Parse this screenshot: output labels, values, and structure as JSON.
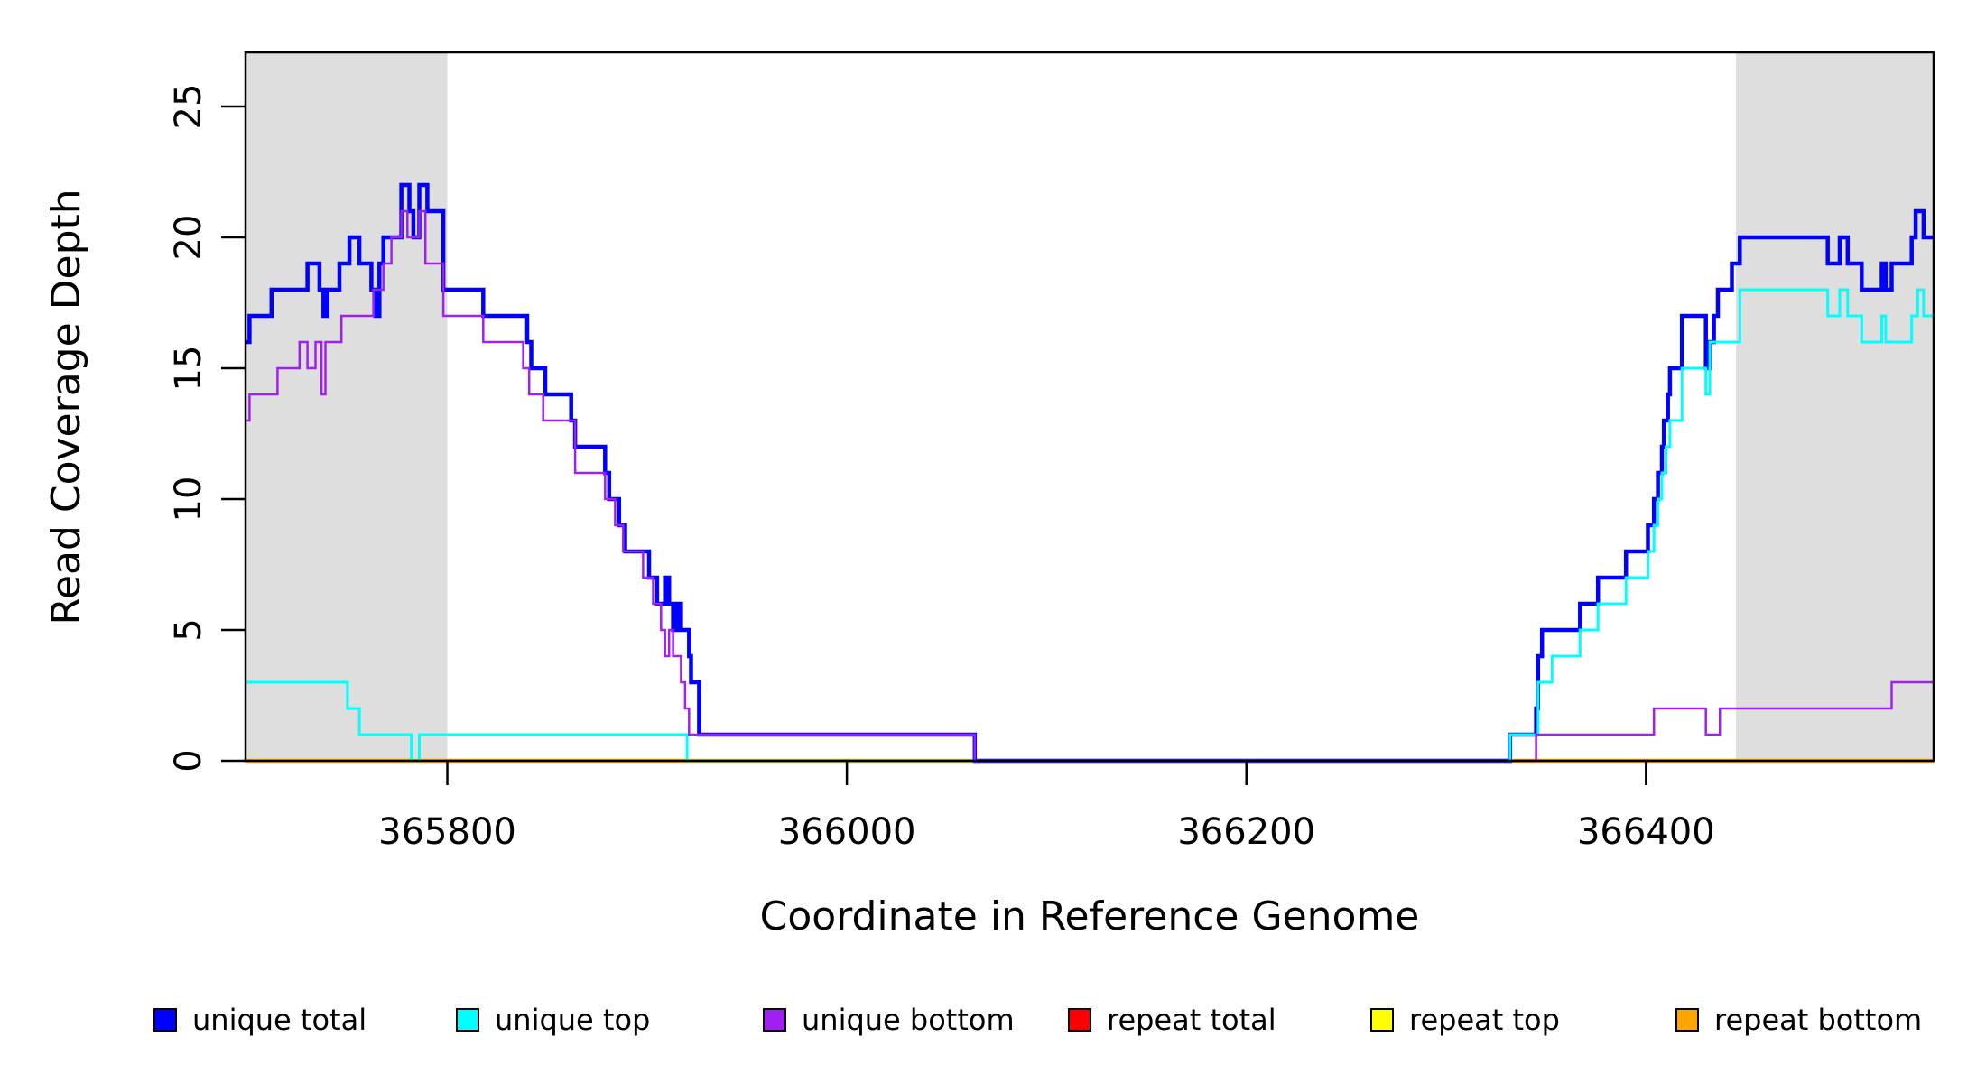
{
  "chart_data": {
    "type": "line",
    "subtype": "step-after-coverage-plot",
    "title": "",
    "xlabel": "Coordinate in Reference Genome",
    "ylabel": "Read Coverage Depth",
    "xlim": [
      365699,
      366544
    ],
    "ylim": [
      0,
      27
    ],
    "grid": false,
    "x_ticks": [
      {
        "value": 365800,
        "label": "365800"
      },
      {
        "value": 366000,
        "label": "366000"
      },
      {
        "value": 366200,
        "label": "366200"
      },
      {
        "value": 366400,
        "label": "366400"
      }
    ],
    "y_ticks": [
      {
        "value": 0,
        "label": "0"
      },
      {
        "value": 5,
        "label": "5"
      },
      {
        "value": 10,
        "label": "10"
      },
      {
        "value": 15,
        "label": "15"
      },
      {
        "value": 20,
        "label": "20"
      },
      {
        "value": 25,
        "label": "25"
      }
    ],
    "shaded_regions": [
      {
        "name": "left-gray-band",
        "from": 365699,
        "to": 365800,
        "color": "#DEDEDE"
      },
      {
        "name": "right-gray-band",
        "from": 366445,
        "to": 366544,
        "color": "#DEDEDE"
      }
    ],
    "legend_position": "bottom",
    "series": [
      {
        "name": "repeat total",
        "color": "#FF0000",
        "width": 4,
        "points": [
          [
            365699,
            0
          ]
        ]
      },
      {
        "name": "repeat top",
        "color": "#FFFF00",
        "width": 3,
        "points": [
          [
            365699,
            0
          ]
        ]
      },
      {
        "name": "repeat bottom",
        "color": "#FFA500",
        "width": 4.5,
        "points": [
          [
            365699,
            0
          ]
        ]
      },
      {
        "name": "unique total",
        "color": "#0000FF",
        "width": 4.5,
        "points": [
          [
            365699,
            16
          ],
          [
            365701,
            17
          ],
          [
            365712,
            18
          ],
          [
            365730,
            19
          ],
          [
            365736,
            18
          ],
          [
            365738,
            17
          ],
          [
            365740,
            18
          ],
          [
            365746,
            19
          ],
          [
            365751,
            20
          ],
          [
            365756,
            19
          ],
          [
            365762,
            18
          ],
          [
            365764,
            17
          ],
          [
            365766,
            19
          ],
          [
            365768,
            20
          ],
          [
            365777,
            22
          ],
          [
            365781,
            21
          ],
          [
            365783,
            20
          ],
          [
            365786,
            22
          ],
          [
            365790,
            21
          ],
          [
            365798,
            18
          ],
          [
            365818,
            17
          ],
          [
            365840,
            16
          ],
          [
            365842,
            15
          ],
          [
            365849,
            14
          ],
          [
            365862,
            13
          ],
          [
            365864,
            12
          ],
          [
            365879,
            11
          ],
          [
            365881,
            10
          ],
          [
            365886,
            9
          ],
          [
            365889,
            8
          ],
          [
            365901,
            7
          ],
          [
            365905,
            6
          ],
          [
            365909,
            7
          ],
          [
            365911,
            6
          ],
          [
            365913,
            5
          ],
          [
            365915,
            6
          ],
          [
            365917,
            5
          ],
          [
            365921,
            4
          ],
          [
            365922,
            3
          ],
          [
            365926,
            1
          ],
          [
            366064,
            0
          ],
          [
            366332,
            1
          ],
          [
            366345,
            2
          ],
          [
            366346,
            4
          ],
          [
            366348,
            5
          ],
          [
            366367,
            6
          ],
          [
            366376,
            7
          ],
          [
            366390,
            8
          ],
          [
            366401,
            9
          ],
          [
            366404,
            10
          ],
          [
            366406,
            11
          ],
          [
            366408,
            12
          ],
          [
            366409,
            13
          ],
          [
            366411,
            14
          ],
          [
            366412,
            15
          ],
          [
            366418,
            17
          ],
          [
            366430,
            15
          ],
          [
            366432,
            16
          ],
          [
            366434,
            17
          ],
          [
            366436,
            18
          ],
          [
            366443,
            19
          ],
          [
            366447,
            20
          ],
          [
            366491,
            19
          ],
          [
            366497,
            20
          ],
          [
            366501,
            19
          ],
          [
            366508,
            18
          ],
          [
            366518,
            19
          ],
          [
            366520,
            18
          ],
          [
            366523,
            19
          ],
          [
            366533,
            20
          ],
          [
            366535,
            21
          ],
          [
            366539,
            20
          ]
        ]
      },
      {
        "name": "unique top",
        "color": "#00FFFF",
        "width": 3,
        "points": [
          [
            365699,
            3
          ],
          [
            365750,
            2
          ],
          [
            365756,
            1
          ],
          [
            365782,
            0
          ],
          [
            365786,
            1
          ],
          [
            365920,
            0
          ],
          [
            366332,
            1
          ],
          [
            366346,
            3
          ],
          [
            366353,
            4
          ],
          [
            366367,
            5
          ],
          [
            366376,
            6
          ],
          [
            366390,
            7
          ],
          [
            366401,
            8
          ],
          [
            366404,
            9
          ],
          [
            366406,
            10
          ],
          [
            366408,
            11
          ],
          [
            366410,
            12
          ],
          [
            366412,
            13
          ],
          [
            366418,
            15
          ],
          [
            366430,
            14
          ],
          [
            366432,
            16
          ],
          [
            366447,
            18
          ],
          [
            366491,
            17
          ],
          [
            366497,
            18
          ],
          [
            366501,
            17
          ],
          [
            366508,
            16
          ],
          [
            366518,
            17
          ],
          [
            366520,
            16
          ],
          [
            366533,
            17
          ],
          [
            366536,
            18
          ],
          [
            366539,
            17
          ]
        ]
      },
      {
        "name": "unique bottom",
        "color": "#A020F0",
        "width": 2.5,
        "points": [
          [
            365699,
            13
          ],
          [
            365701,
            14
          ],
          [
            365715,
            15
          ],
          [
            365726,
            16
          ],
          [
            365730,
            15
          ],
          [
            365734,
            16
          ],
          [
            365737,
            14
          ],
          [
            365739,
            16
          ],
          [
            365747,
            17
          ],
          [
            365763,
            18
          ],
          [
            365768,
            19
          ],
          [
            365772,
            20
          ],
          [
            365777,
            21
          ],
          [
            365780,
            20
          ],
          [
            365786,
            21
          ],
          [
            365789,
            19
          ],
          [
            365798,
            17
          ],
          [
            365818,
            16
          ],
          [
            365838,
            15
          ],
          [
            365841,
            14
          ],
          [
            365848,
            13
          ],
          [
            365864,
            11
          ],
          [
            365879,
            10
          ],
          [
            365884,
            9
          ],
          [
            365888,
            8
          ],
          [
            365898,
            7
          ],
          [
            365903,
            6
          ],
          [
            365907,
            5
          ],
          [
            365909,
            4
          ],
          [
            365911,
            5
          ],
          [
            365913,
            4
          ],
          [
            365917,
            3
          ],
          [
            365919,
            2
          ],
          [
            365921,
            1
          ],
          [
            366064,
            0
          ],
          [
            366345,
            1
          ],
          [
            366404,
            2
          ],
          [
            366430,
            1
          ],
          [
            366437,
            2
          ],
          [
            366523,
            3
          ]
        ]
      }
    ],
    "legend": [
      {
        "label": "unique total",
        "color": "#0000FF"
      },
      {
        "label": "unique top",
        "color": "#00FFFF"
      },
      {
        "label": "unique bottom",
        "color": "#A020F0"
      },
      {
        "label": "repeat total",
        "color": "#FF0000"
      },
      {
        "label": "repeat top",
        "color": "#FFFF00"
      },
      {
        "label": "repeat bottom",
        "color": "#FFA500"
      }
    ]
  },
  "layout_note": "R-style base graphics coverage plot, full black box border, ticks outside"
}
